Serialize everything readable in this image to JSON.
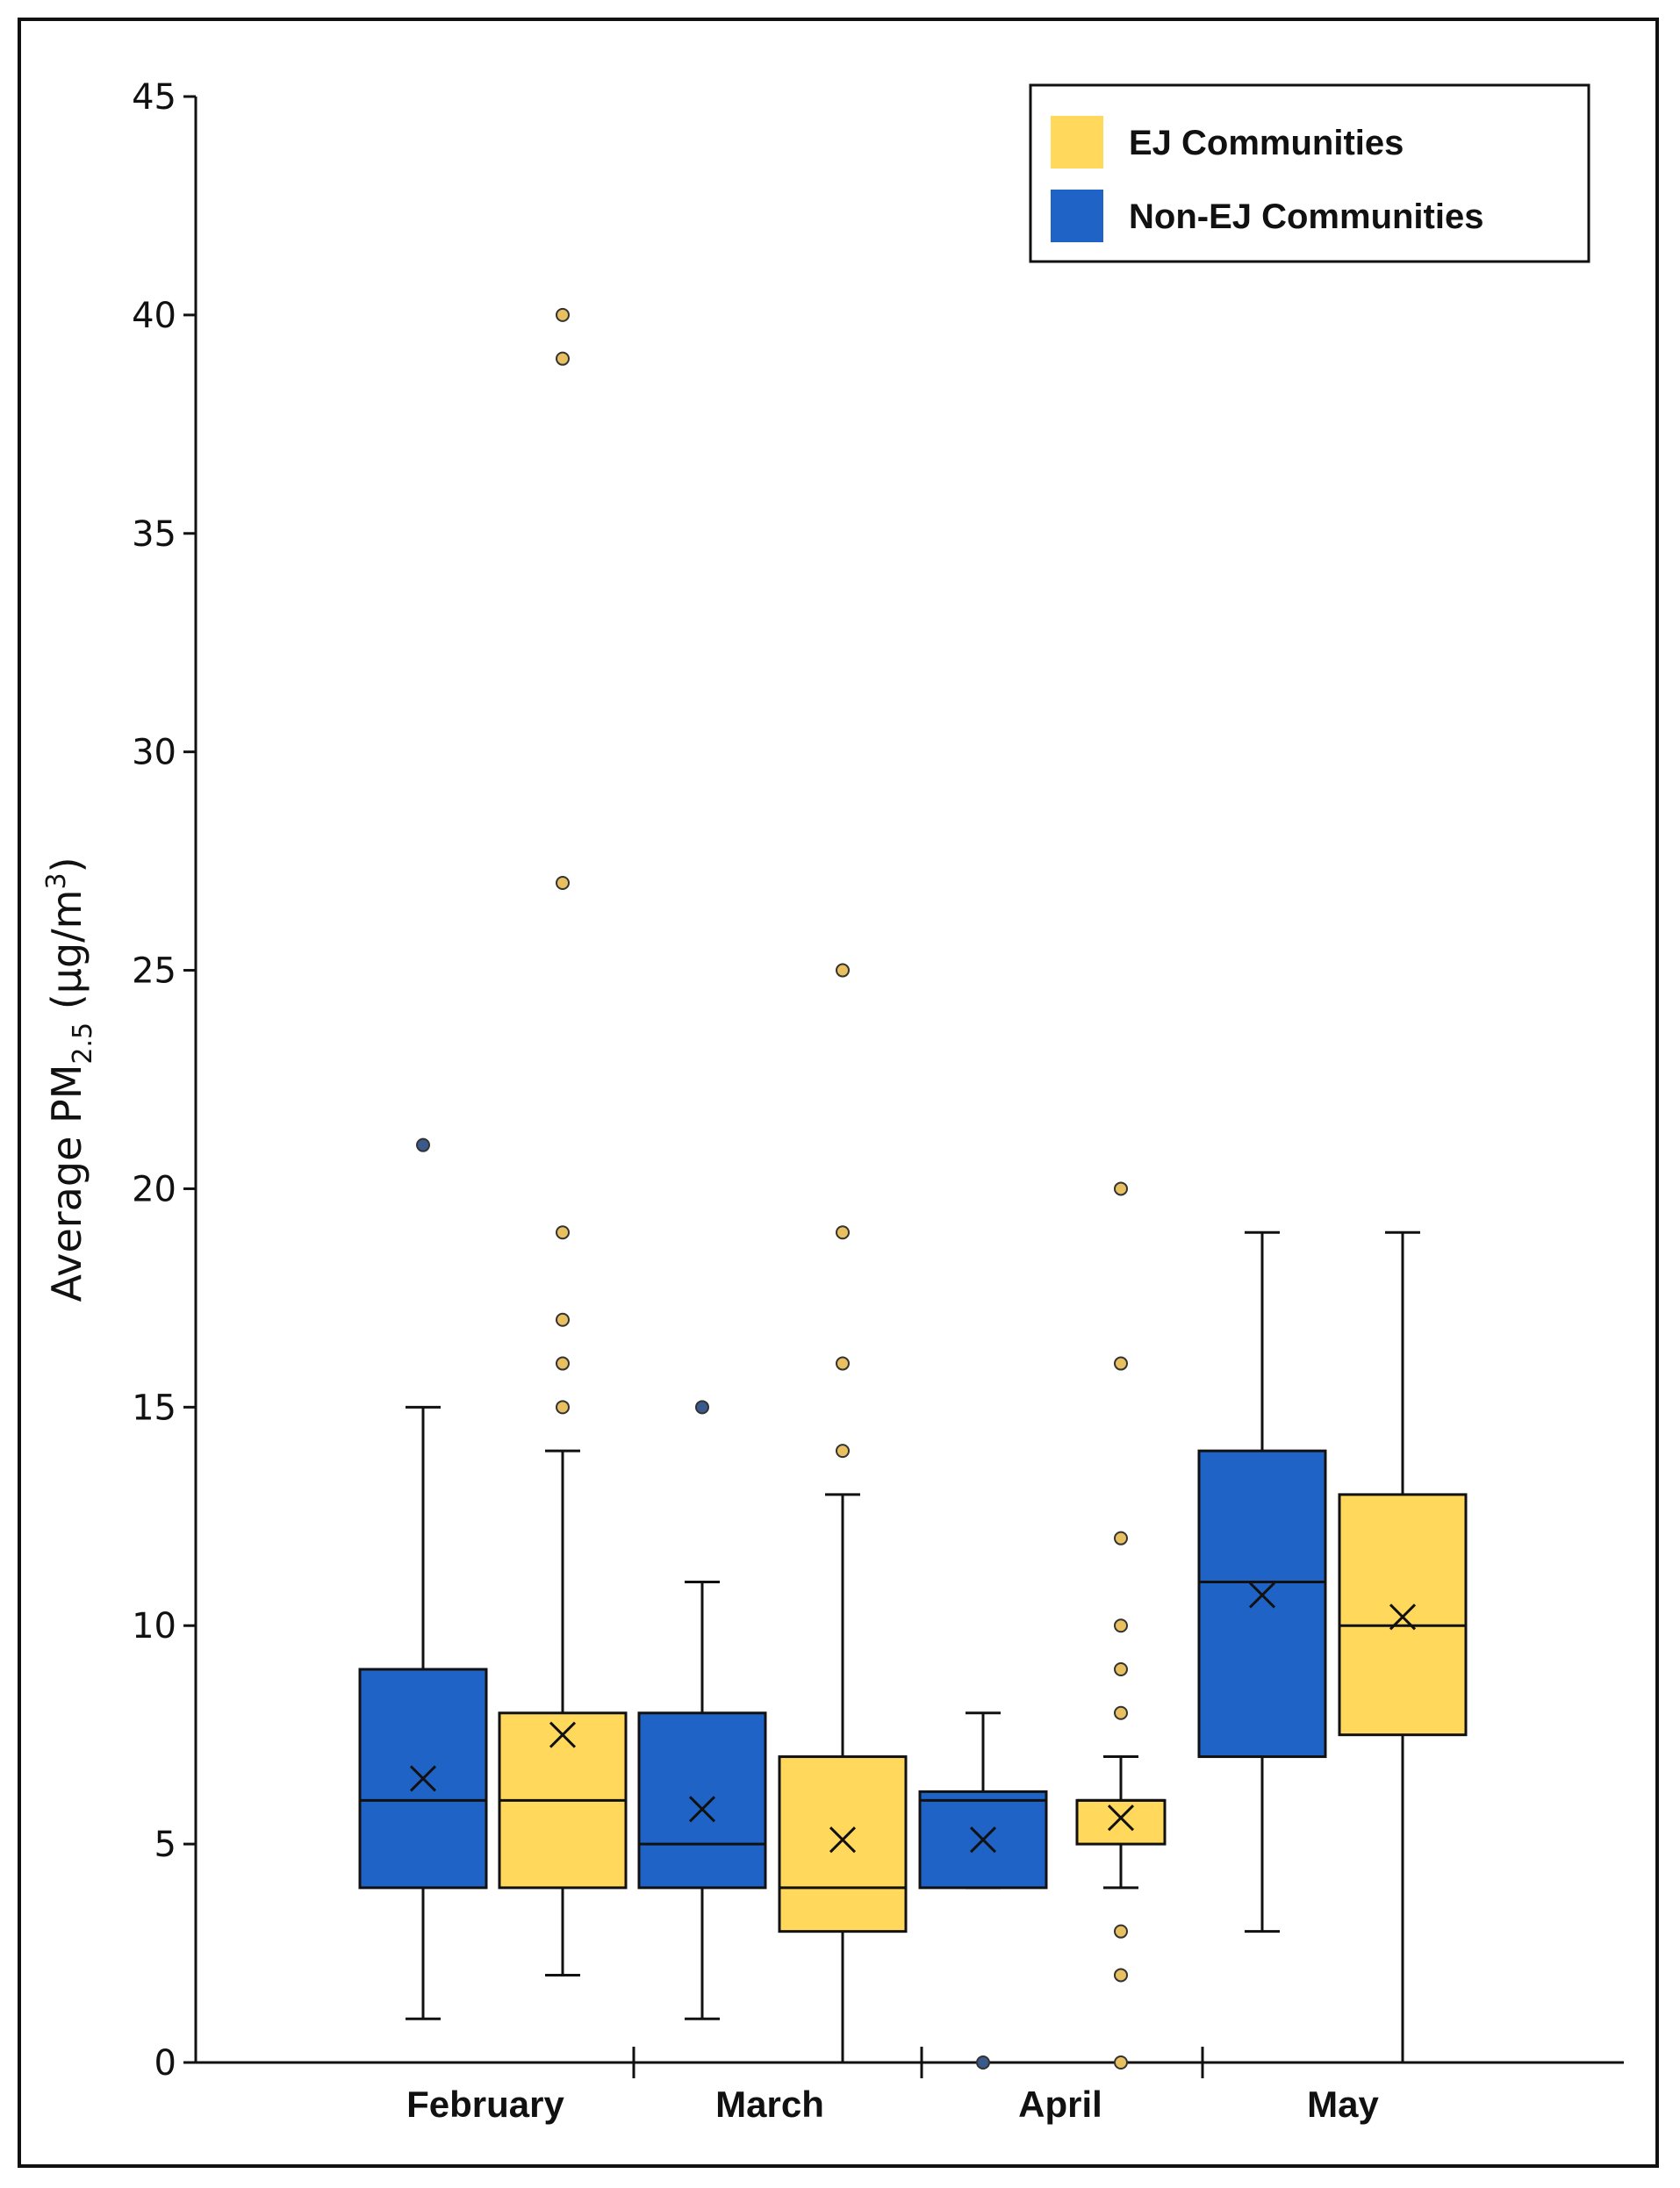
{
  "chart_data": {
    "type": "box",
    "title": "",
    "xlabel": "",
    "ylabel": {
      "prefix": "Average PM",
      "subscript": "2.5",
      "unit_prefix": " (µg/m",
      "superscript": "3",
      "unit_suffix": ")"
    },
    "ylim": [
      0,
      45
    ],
    "yticks": [
      0,
      5,
      10,
      15,
      20,
      25,
      30,
      35,
      40,
      45
    ],
    "categories": [
      "February",
      "March",
      "April",
      "May"
    ],
    "legend": {
      "position": "top-right",
      "entries": [
        {
          "name": "EJ Communities",
          "color": "#FFD85C"
        },
        {
          "name": "Non-EJ Communities",
          "color": "#1F63C6"
        }
      ]
    },
    "series": [
      {
        "name": "Non-EJ Communities",
        "color": "#1F63C6",
        "outlier_color": "#3B5A8C",
        "boxes": [
          {
            "category": "February",
            "min": 1,
            "q1": 4,
            "median": 6,
            "q3": 9,
            "max": 15,
            "mean": 6.5,
            "outliers": [
              21
            ]
          },
          {
            "category": "March",
            "min": 1,
            "q1": 4,
            "median": 5,
            "q3": 8,
            "max": 11,
            "mean": 5.8,
            "outliers": [
              15
            ]
          },
          {
            "category": "April",
            "min": 4,
            "q1": 4,
            "median": 6,
            "q3": 6.2,
            "max": 8,
            "mean": 5.1,
            "outliers": [
              0
            ]
          },
          {
            "category": "May",
            "min": 3,
            "q1": 7,
            "median": 11,
            "q3": 14,
            "max": 19,
            "mean": 10.7,
            "outliers": []
          }
        ]
      },
      {
        "name": "EJ Communities",
        "color": "#FFD85C",
        "outlier_color": "#E8C060",
        "boxes": [
          {
            "category": "February",
            "min": 2,
            "q1": 4,
            "median": 6,
            "q3": 8,
            "max": 14,
            "mean": 7.5,
            "outliers": [
              15,
              16,
              17,
              19,
              27,
              39,
              40
            ]
          },
          {
            "category": "March",
            "min": 0,
            "q1": 3,
            "median": 4,
            "q3": 7,
            "max": 13,
            "mean": 5.1,
            "outliers": [
              14,
              16,
              19,
              25
            ]
          },
          {
            "category": "April",
            "min": 4,
            "q1": 5,
            "median": 6,
            "q3": 6,
            "max": 7,
            "mean": 5.6,
            "outliers": [
              0,
              2,
              3,
              8,
              9,
              10,
              12,
              16,
              20
            ]
          },
          {
            "category": "May",
            "min": 0,
            "q1": 7.5,
            "median": 10,
            "q3": 13,
            "max": 19,
            "mean": 10.2,
            "outliers": []
          }
        ]
      }
    ]
  }
}
